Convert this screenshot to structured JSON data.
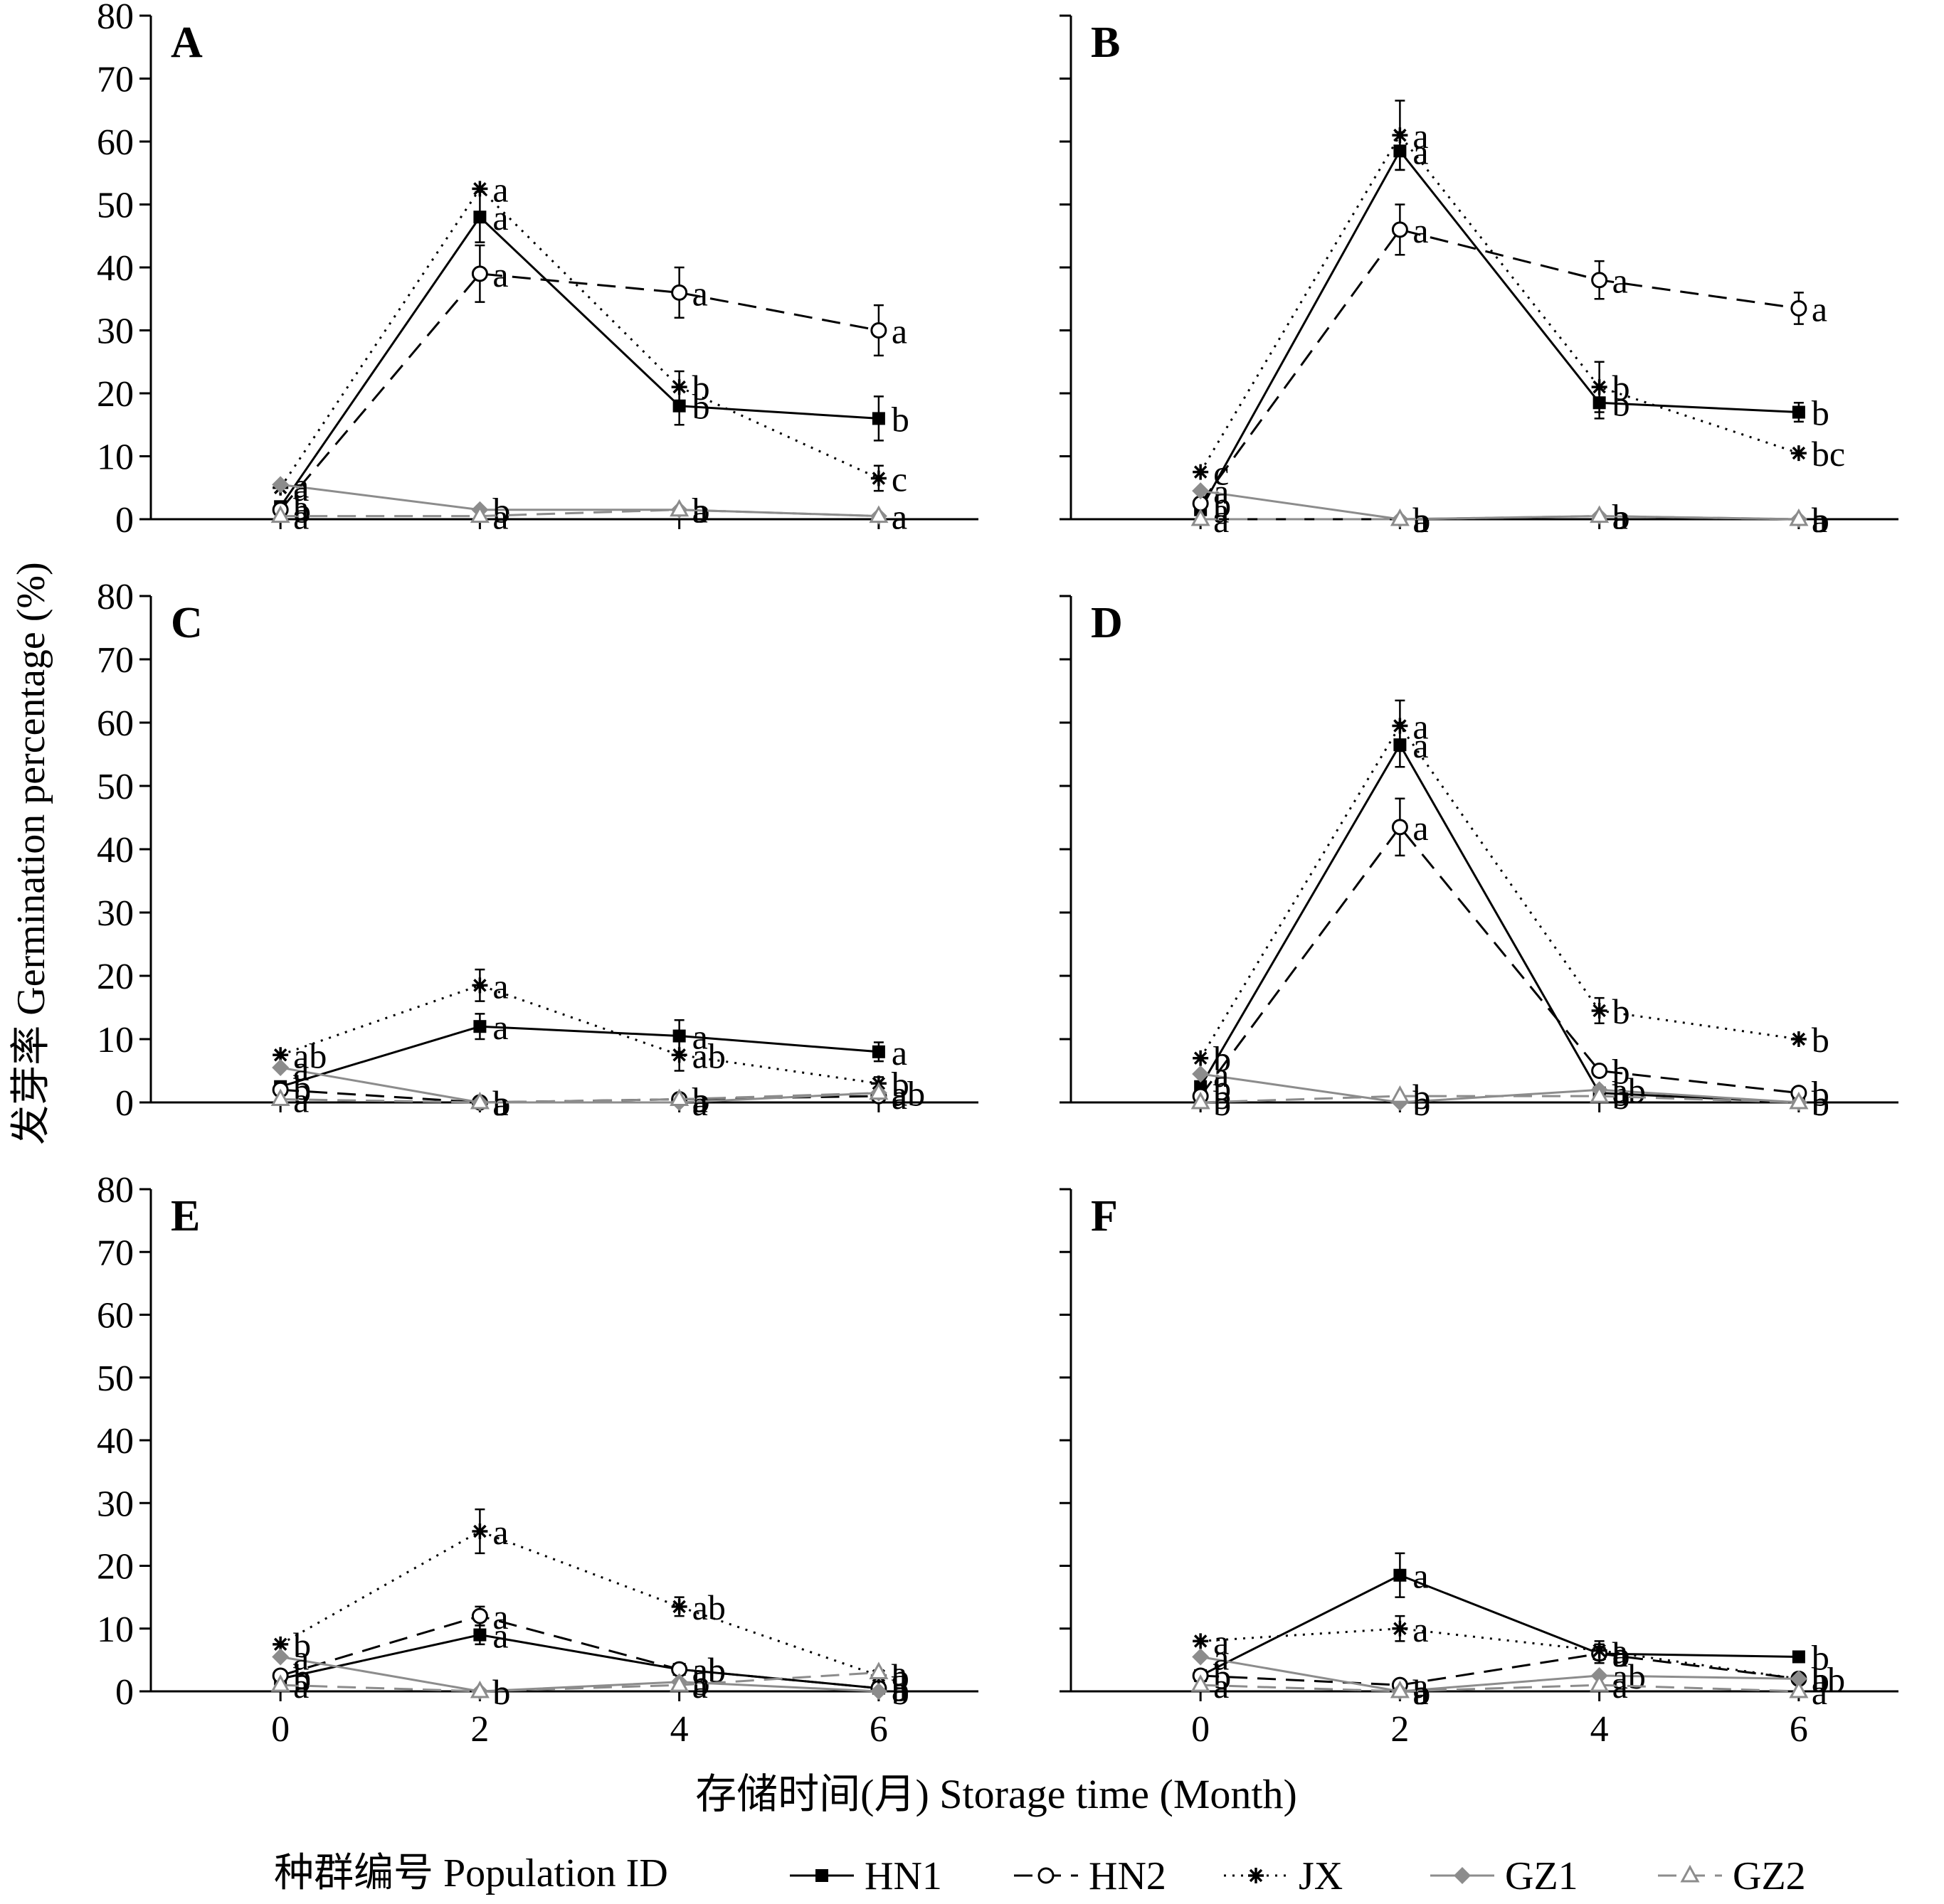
{
  "figure": {
    "ylabel": "发芽率 Germination percentage (%)",
    "xlabel": "存储时间(月) Storage time (Month)",
    "legend_title": "种群编号 Population ID",
    "legend_placement": "bottom"
  },
  "series_styles": [
    {
      "name": "HN1",
      "line": "solid",
      "marker": "square-filled",
      "color": "#000000"
    },
    {
      "name": "HN2",
      "line": "dashed",
      "marker": "circle-open",
      "color": "#000000"
    },
    {
      "name": "JX",
      "line": "dotted",
      "marker": "asterisk",
      "color": "#000000"
    },
    {
      "name": "GZ1",
      "line": "solid",
      "marker": "diamond-filled",
      "color": "#8c8c8c"
    },
    {
      "name": "GZ2",
      "line": "dashed",
      "marker": "triangle-open",
      "color": "#8c8c8c"
    }
  ],
  "chart_data": [
    {
      "type": "line",
      "panel": "A",
      "x": [
        0,
        2,
        4,
        6
      ],
      "xticks": [
        "0",
        "2",
        "4",
        "6"
      ],
      "ylim": [
        0,
        80
      ],
      "yticks": [
        "0",
        "10",
        "20",
        "30",
        "40",
        "50",
        "60",
        "70",
        "80"
      ],
      "series": [
        {
          "name": "HN1",
          "values": [
            2,
            48,
            18,
            16
          ],
          "err": [
            0,
            4,
            3,
            3.5
          ],
          "letters": [
            "a",
            "a",
            "b",
            "b"
          ]
        },
        {
          "name": "HN2",
          "values": [
            1.5,
            39,
            36,
            30
          ],
          "err": [
            0,
            4.5,
            4,
            4
          ],
          "letters": [
            "b",
            "a",
            "a",
            "a"
          ]
        },
        {
          "name": "JX",
          "values": [
            5,
            52.5,
            21,
            6.5
          ],
          "err": [
            0,
            0,
            2.5,
            2
          ],
          "letters": [
            "a",
            "a",
            "b",
            "c"
          ]
        },
        {
          "name": "GZ1",
          "values": [
            5.5,
            1.5,
            1.5,
            0.5
          ],
          "err": [
            0,
            0,
            0,
            0
          ],
          "letters": [
            "a",
            "b",
            "b",
            "a"
          ]
        },
        {
          "name": "GZ2",
          "values": [
            0.5,
            0.5,
            1.5,
            0.5
          ],
          "err": [
            0,
            0,
            0,
            0
          ],
          "letters": [
            "a",
            "a",
            "a",
            "a"
          ]
        }
      ]
    },
    {
      "type": "line",
      "panel": "B",
      "x": [
        0,
        2,
        4,
        6
      ],
      "xticks": [
        "0",
        "2",
        "4",
        "6"
      ],
      "ylim": [
        0,
        80
      ],
      "yticks": [
        "0",
        "10",
        "20",
        "30",
        "40",
        "50",
        "60",
        "70",
        "80"
      ],
      "series": [
        {
          "name": "HN1",
          "values": [
            1.5,
            58.5,
            18.5,
            17
          ],
          "err": [
            0,
            3,
            2.5,
            1.5
          ],
          "letters": [
            "a",
            "a",
            "b",
            "b"
          ]
        },
        {
          "name": "HN2",
          "values": [
            2.5,
            46,
            38,
            33.5
          ],
          "err": [
            0,
            4,
            3,
            2.5
          ],
          "letters": [
            "b",
            "a",
            "a",
            "a"
          ]
        },
        {
          "name": "JX",
          "values": [
            7.5,
            61,
            21,
            10.5
          ],
          "err": [
            0,
            5.5,
            4,
            0
          ],
          "letters": [
            "c",
            "a",
            "b",
            "bc"
          ]
        },
        {
          "name": "GZ1",
          "values": [
            4.5,
            0,
            0.5,
            0
          ],
          "err": [
            0,
            0,
            0,
            0
          ],
          "letters": [
            "a",
            "b",
            "b",
            "b"
          ]
        },
        {
          "name": "GZ2",
          "values": [
            0,
            0,
            0.5,
            0
          ],
          "err": [
            0,
            0,
            0,
            0
          ],
          "letters": [
            "a",
            "a",
            "a",
            "a"
          ]
        }
      ]
    },
    {
      "type": "line",
      "panel": "C",
      "x": [
        0,
        2,
        4,
        6
      ],
      "xticks": [
        "0",
        "2",
        "4",
        "6"
      ],
      "ylim": [
        0,
        80
      ],
      "yticks": [
        "0",
        "10",
        "20",
        "30",
        "40",
        "50",
        "60",
        "70",
        "80"
      ],
      "series": [
        {
          "name": "HN1",
          "values": [
            2.5,
            12,
            10.5,
            8
          ],
          "err": [
            0,
            2,
            2.5,
            1.5
          ],
          "letters": [
            "b",
            "a",
            "a",
            "a"
          ]
        },
        {
          "name": "HN2",
          "values": [
            2,
            0,
            0.5,
            1
          ],
          "err": [
            0,
            0,
            0,
            0
          ],
          "letters": [
            "b",
            "b",
            "b",
            "a"
          ]
        },
        {
          "name": "JX",
          "values": [
            7.5,
            18.5,
            7.5,
            3
          ],
          "err": [
            0,
            2.5,
            2.5,
            1
          ],
          "letters": [
            "ab",
            "a",
            "ab",
            "b"
          ]
        },
        {
          "name": "GZ1",
          "values": [
            5.5,
            0,
            0,
            1.5
          ],
          "err": [
            0,
            0,
            0,
            0
          ],
          "letters": [
            "a",
            "a",
            "a",
            "ab"
          ]
        },
        {
          "name": "GZ2",
          "values": [
            0.5,
            0,
            0.5,
            1.5
          ],
          "err": [
            0,
            0,
            0,
            0
          ],
          "letters": [
            "a",
            "a",
            "a",
            "a"
          ]
        }
      ]
    },
    {
      "type": "line",
      "panel": "D",
      "x": [
        0,
        2,
        4,
        6
      ],
      "xticks": [
        "0",
        "2",
        "4",
        "6"
      ],
      "ylim": [
        0,
        80
      ],
      "yticks": [
        "0",
        "10",
        "20",
        "30",
        "40",
        "50",
        "60",
        "70",
        "80"
      ],
      "series": [
        {
          "name": "HN1",
          "values": [
            2.5,
            56.5,
            1.5,
            0
          ],
          "err": [
            0,
            3.5,
            0,
            0
          ],
          "letters": [
            "b",
            "a",
            "b",
            "b"
          ]
        },
        {
          "name": "HN2",
          "values": [
            1,
            43.5,
            5,
            1.5
          ],
          "err": [
            0,
            4.5,
            0,
            0
          ],
          "letters": [
            "b",
            "a",
            "b",
            "b"
          ]
        },
        {
          "name": "JX",
          "values": [
            7,
            59.5,
            14.5,
            10
          ],
          "err": [
            0,
            4,
            2,
            0
          ],
          "letters": [
            "b",
            "a",
            "b",
            "b"
          ]
        },
        {
          "name": "GZ1",
          "values": [
            4.5,
            0,
            2,
            0
          ],
          "err": [
            0,
            0,
            0,
            0
          ],
          "letters": [
            "a",
            "b",
            "ab",
            "b"
          ]
        },
        {
          "name": "GZ2",
          "values": [
            0,
            1,
            1,
            0
          ],
          "err": [
            0,
            0,
            0,
            0
          ],
          "letters": [
            "b",
            "b",
            "b",
            "b"
          ]
        }
      ]
    },
    {
      "type": "line",
      "panel": "E",
      "x": [
        0,
        2,
        4,
        6
      ],
      "xticks": [
        "0",
        "2",
        "4",
        "6"
      ],
      "ylim": [
        0,
        80
      ],
      "yticks": [
        "0",
        "10",
        "20",
        "30",
        "40",
        "50",
        "60",
        "70",
        "80"
      ],
      "series": [
        {
          "name": "HN1",
          "values": [
            2,
            9,
            3.5,
            0.5
          ],
          "err": [
            0,
            1.5,
            0,
            0
          ],
          "letters": [
            "b",
            "a",
            "ab",
            "a"
          ]
        },
        {
          "name": "HN2",
          "values": [
            2.5,
            12,
            3.5,
            0.5
          ],
          "err": [
            0,
            1.5,
            0,
            0
          ],
          "letters": [
            "b",
            "a",
            "ab",
            "b"
          ]
        },
        {
          "name": "JX",
          "values": [
            7.5,
            25.5,
            13.5,
            2.5
          ],
          "err": [
            0,
            3.5,
            1.5,
            0
          ],
          "letters": [
            "b",
            "a",
            "ab",
            "b"
          ]
        },
        {
          "name": "GZ1",
          "values": [
            5.5,
            0,
            1.5,
            0
          ],
          "err": [
            0,
            0,
            0,
            0
          ],
          "letters": [
            "a",
            "b",
            "b",
            "b"
          ]
        },
        {
          "name": "GZ2",
          "values": [
            1,
            0,
            1,
            3
          ],
          "err": [
            0,
            0,
            0,
            0
          ],
          "letters": [
            "a",
            "b",
            "a",
            "a"
          ]
        }
      ]
    },
    {
      "type": "line",
      "panel": "F",
      "x": [
        0,
        2,
        4,
        6
      ],
      "xticks": [
        "0",
        "2",
        "4",
        "6"
      ],
      "ylim": [
        0,
        80
      ],
      "yticks": [
        "0",
        "10",
        "20",
        "30",
        "40",
        "50",
        "60",
        "70",
        "80"
      ],
      "series": [
        {
          "name": "HN1",
          "values": [
            2.5,
            18.5,
            6,
            5.5
          ],
          "err": [
            0,
            3.5,
            1.5,
            0.5
          ],
          "letters": [
            "b",
            "a",
            "b",
            "b"
          ]
        },
        {
          "name": "HN2",
          "values": [
            2.5,
            1,
            6,
            2
          ],
          "err": [
            0,
            0,
            1,
            0
          ],
          "letters": [
            "b",
            "a",
            "a",
            "b"
          ]
        },
        {
          "name": "JX",
          "values": [
            8,
            10,
            6.5,
            2
          ],
          "err": [
            0,
            2,
            1.5,
            0
          ],
          "letters": [
            "a",
            "a",
            "a",
            "b"
          ]
        },
        {
          "name": "GZ1",
          "values": [
            5.5,
            0,
            2.5,
            2
          ],
          "err": [
            0,
            0,
            0,
            0
          ],
          "letters": [
            "a",
            "b",
            "ab",
            "ab"
          ]
        },
        {
          "name": "GZ2",
          "values": [
            1,
            0,
            1,
            0
          ],
          "err": [
            0,
            0,
            0,
            0
          ],
          "letters": [
            "a",
            "a",
            "a",
            "a"
          ]
        }
      ]
    }
  ]
}
